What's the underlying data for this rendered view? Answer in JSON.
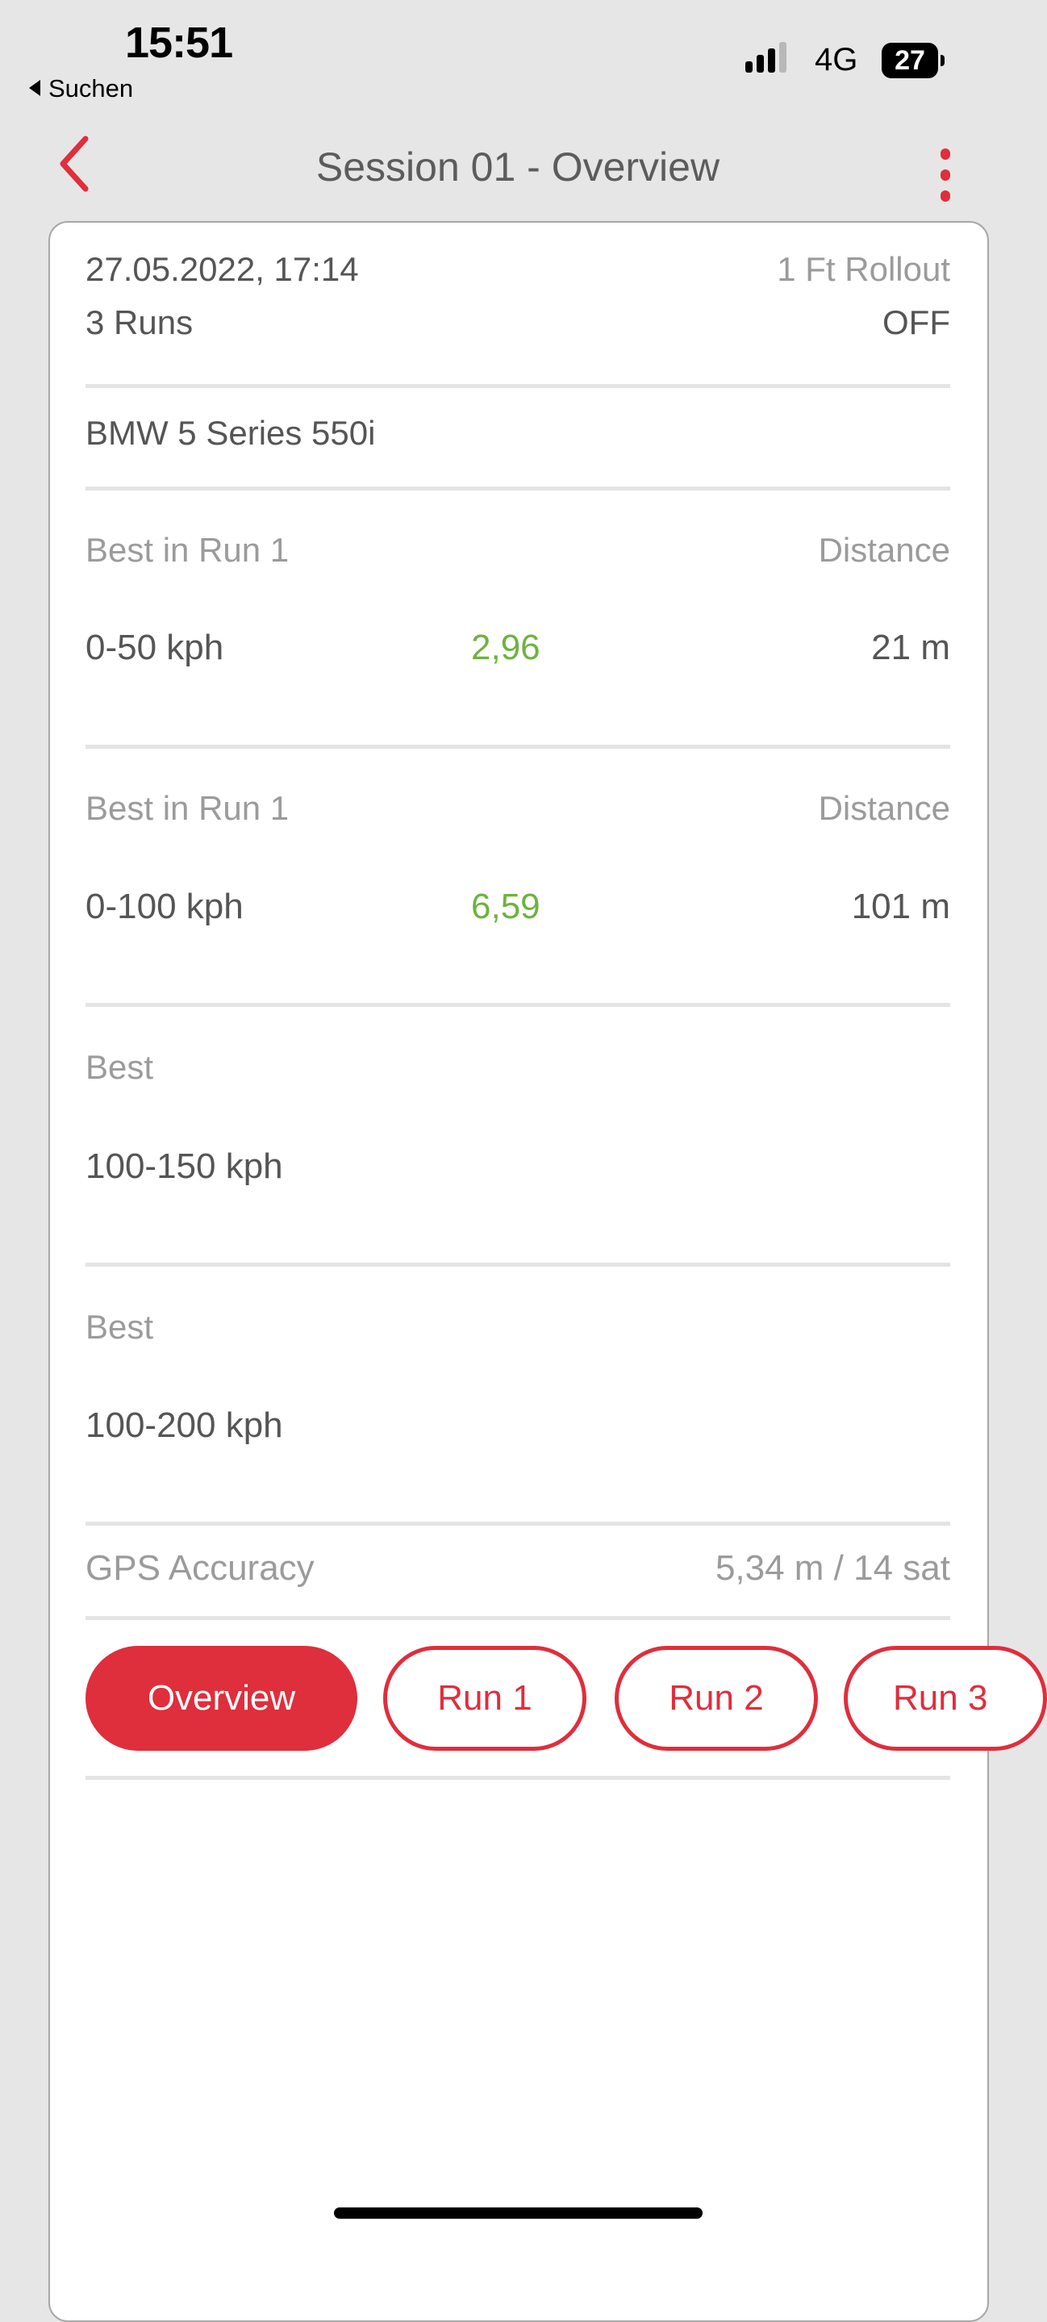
{
  "status_bar": {
    "time": "15:51",
    "back_app": "Suchen",
    "network": "4G",
    "battery": "27"
  },
  "nav": {
    "title": "Session 01 - Overview",
    "back_icon": "chevron-left-icon",
    "menu_icon": "more-vertical-icon"
  },
  "session": {
    "datetime": "27.05.2022, 17:14",
    "runs": "3 Runs",
    "rollout_label": "1 Ft Rollout",
    "rollout_value": "OFF",
    "car": "BMW 5 Series 550i"
  },
  "metrics": [
    {
      "label": "Best in Run 1",
      "distance_label": "Distance",
      "range": "0-50 kph",
      "time": "2,96",
      "distance": "21 m"
    },
    {
      "label": "Best in Run 1",
      "distance_label": "Distance",
      "range": "0-100 kph",
      "time": "6,59",
      "distance": "101 m"
    },
    {
      "label": "Best",
      "range": "100-150 kph"
    },
    {
      "label": "Best",
      "range": "100-200 kph"
    }
  ],
  "gps": {
    "label": "GPS Accuracy",
    "value": "5,34 m / 14 sat"
  },
  "tabs": [
    {
      "label": "Overview",
      "active": true
    },
    {
      "label": "Run 1"
    },
    {
      "label": "Run 2"
    },
    {
      "label": "Run 3"
    }
  ],
  "colors": {
    "accent": "#df2e3c",
    "good": "#6db33f"
  }
}
